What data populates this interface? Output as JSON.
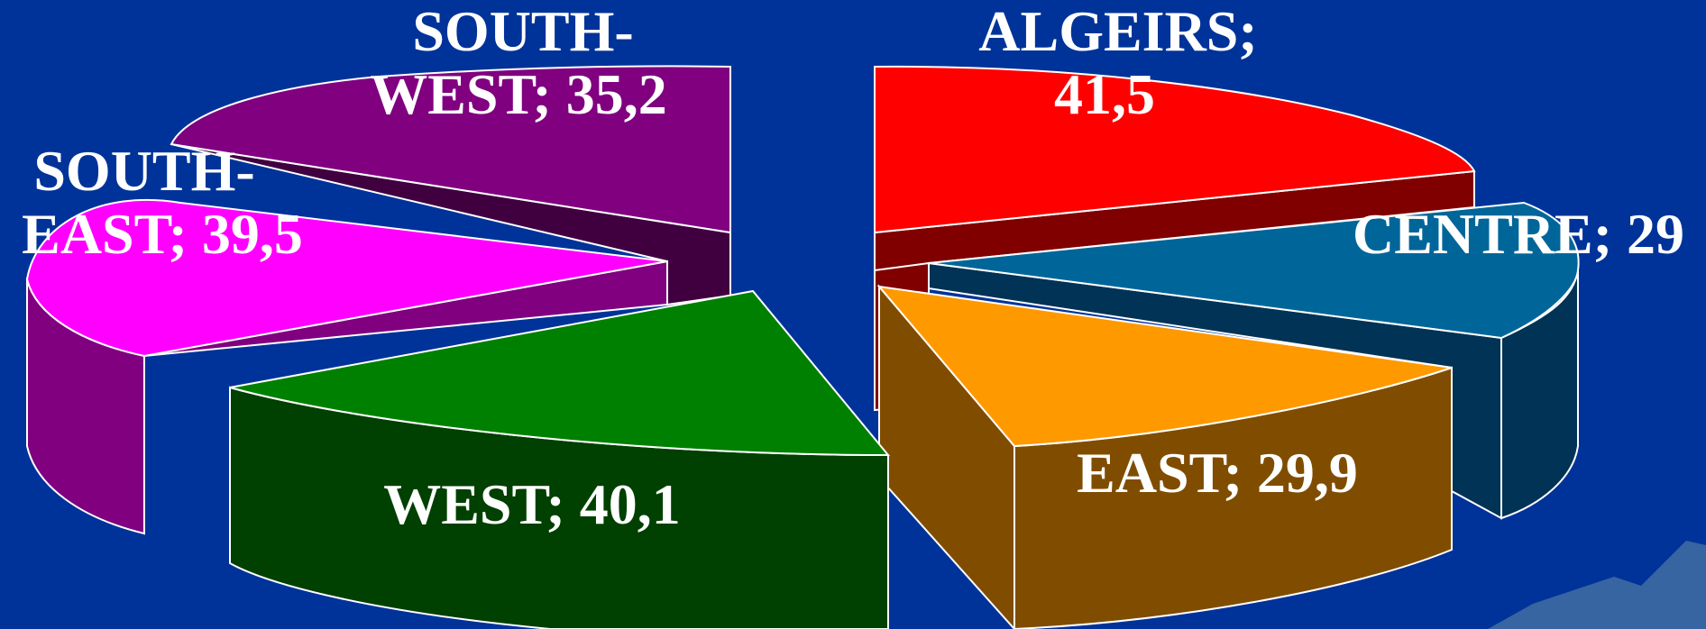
{
  "chart_data": {
    "type": "pie",
    "style": "3d-exploded",
    "slices": [
      {
        "name": "ALGEIRS",
        "value": 41.5,
        "label_line1": "ALGEIRS;",
        "label_line2": "41,5",
        "top_color": "#ff0000",
        "side_color": "#800000"
      },
      {
        "name": "CENTRE",
        "value": 29,
        "label_line1": "CENTRE; 29",
        "label_line2": "",
        "top_color": "#006699",
        "side_color": "#003355"
      },
      {
        "name": "EAST",
        "value": 29.9,
        "label_line1": "EAST; 29,9",
        "label_line2": "",
        "top_color": "#ff9900",
        "side_color": "#804d00"
      },
      {
        "name": "WEST",
        "value": 40.1,
        "label_line1": "WEST; 40,1",
        "label_line2": "",
        "top_color": "#008000",
        "side_color": "#004000"
      },
      {
        "name": "SOUTH-EAST",
        "value": 39.5,
        "label_line1": "SOUTH-",
        "label_line2": "EAST; 39,5",
        "top_color": "#ff00ff",
        "side_color": "#800080"
      },
      {
        "name": "SOUTH-WEST",
        "value": 35.2,
        "label_line1": "SOUTH-",
        "label_line2": "WEST; 35,2",
        "top_color": "#800080",
        "side_color": "#400040"
      }
    ]
  },
  "colors": {
    "background": "#003399",
    "outline": "#ffffff"
  }
}
